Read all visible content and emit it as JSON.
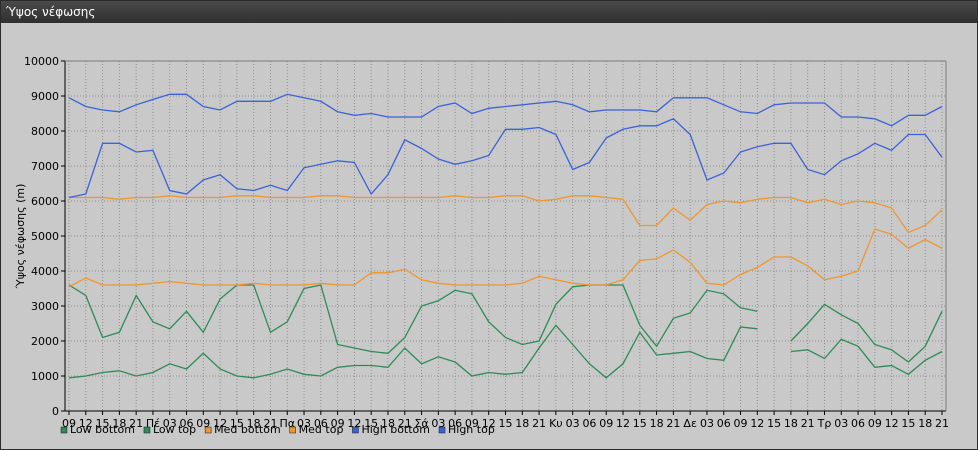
{
  "window": {
    "title": "Ύψος νέφωσης"
  },
  "chart_data": {
    "type": "line",
    "title": "",
    "xlabel": "",
    "ylabel": "Ύψος νέφωσης (m)",
    "ylim": [
      0,
      10000
    ],
    "yticks": [
      0,
      1000,
      2000,
      3000,
      4000,
      5000,
      6000,
      7000,
      8000,
      9000,
      10000
    ],
    "grid": true,
    "legend_position": "bottom-left",
    "x_labels": [
      "09",
      "12",
      "15",
      "18",
      "21",
      "Πέ",
      "03",
      "06",
      "09",
      "12",
      "15",
      "18",
      "21",
      "Πα",
      "03",
      "06",
      "09",
      "12",
      "15",
      "18",
      "21",
      "Σά",
      "03",
      "06",
      "09",
      "12",
      "15",
      "18",
      "21",
      "Κυ",
      "03",
      "06",
      "09",
      "12",
      "15",
      "18",
      "21",
      "Δε",
      "03",
      "06",
      "09",
      "12",
      "15",
      "18",
      "21",
      "Τρ",
      "03",
      "06",
      "09",
      "12",
      "15",
      "18",
      "21"
    ],
    "series": [
      {
        "name": "Low bottom",
        "color": "#2e8b57",
        "values": [
          950,
          1000,
          1100,
          1150,
          1000,
          1100,
          1350,
          1200,
          1650,
          1200,
          1000,
          950,
          1050,
          1200,
          1050,
          1000,
          1250,
          1300,
          1300,
          1250,
          1800,
          1350,
          1550,
          1400,
          1000,
          1100,
          1050,
          1100,
          1800,
          2450,
          1900,
          1350,
          950,
          1350,
          2250,
          1600,
          1650,
          1700,
          1500,
          1450,
          2400,
          2350,
          null,
          1700,
          1750,
          1500,
          2050,
          1850,
          1250,
          1300,
          1050,
          1450,
          1700
        ]
      },
      {
        "name": "Low top",
        "color": "#2e8b57",
        "values": [
          3600,
          3300,
          2100,
          2250,
          3300,
          2550,
          2350,
          2850,
          2250,
          3200,
          3600,
          3600,
          2250,
          2550,
          3500,
          3600,
          1900,
          1800,
          1700,
          1650,
          2100,
          3000,
          3150,
          3450,
          3350,
          2550,
          2100,
          1900,
          2000,
          3050,
          3550,
          3600,
          3600,
          3600,
          2450,
          1850,
          2650,
          2800,
          3450,
          3350,
          2950,
          2850,
          null,
          2000,
          2500,
          3050,
          2750,
          2500,
          1900,
          1750,
          1400,
          1850,
          2850
        ]
      },
      {
        "name": "Med bottom",
        "color": "#f0962e",
        "values": [
          3550,
          3800,
          3600,
          3600,
          3600,
          3650,
          3700,
          3650,
          3600,
          3600,
          3600,
          3650,
          3600,
          3600,
          3600,
          3650,
          3600,
          3600,
          3950,
          3950,
          4050,
          3750,
          3650,
          3600,
          3600,
          3600,
          3600,
          3650,
          3850,
          3750,
          3650,
          3600,
          3600,
          3750,
          4300,
          4350,
          4600,
          4250,
          3650,
          3600,
          3900,
          4100,
          4400,
          4400,
          4150,
          3750,
          3850,
          4000,
          5200,
          5050,
          4650,
          4900,
          4650
        ]
      },
      {
        "name": "Med top",
        "color": "#f0962e",
        "values": [
          6100,
          6100,
          6100,
          6050,
          6100,
          6100,
          6150,
          6100,
          6100,
          6100,
          6150,
          6150,
          6100,
          6100,
          6100,
          6150,
          6150,
          6100,
          6100,
          6100,
          6100,
          6100,
          6100,
          6150,
          6100,
          6100,
          6150,
          6150,
          6000,
          6050,
          6150,
          6150,
          6100,
          6050,
          5300,
          5300,
          5800,
          5450,
          5900,
          6000,
          5950,
          6050,
          6100,
          6100,
          5950,
          6050,
          5900,
          6000,
          5950,
          5800,
          5100,
          5300,
          5750
        ]
      },
      {
        "name": "High bottom",
        "color": "#3b62d8",
        "values": [
          6100,
          6200,
          7650,
          7650,
          7400,
          7450,
          6300,
          6200,
          6600,
          6750,
          6350,
          6300,
          6450,
          6300,
          6950,
          7050,
          7150,
          7100,
          6200,
          6750,
          7750,
          7500,
          7200,
          7050,
          7150,
          7300,
          8050,
          8050,
          8100,
          7900,
          6900,
          7100,
          7800,
          8050,
          8150,
          8150,
          8350,
          7900,
          6600,
          6800,
          7400,
          7550,
          7650,
          7650,
          6900,
          6750,
          7150,
          7350,
          7650,
          7450,
          7900,
          7900,
          7250
        ]
      },
      {
        "name": "High top",
        "color": "#3b62d8",
        "values": [
          8950,
          8700,
          8600,
          8550,
          8750,
          8900,
          9050,
          9050,
          8700,
          8600,
          8850,
          8850,
          8850,
          9050,
          8950,
          8850,
          8550,
          8450,
          8500,
          8400,
          8400,
          8400,
          8700,
          8800,
          8500,
          8650,
          8700,
          8750,
          8800,
          8850,
          8750,
          8550,
          8600,
          8600,
          8600,
          8550,
          8950,
          8950,
          8950,
          8750,
          8550,
          8500,
          8750,
          8800,
          8800,
          8800,
          8400,
          8400,
          8350,
          8150,
          8450,
          8450,
          8700
        ]
      }
    ]
  }
}
